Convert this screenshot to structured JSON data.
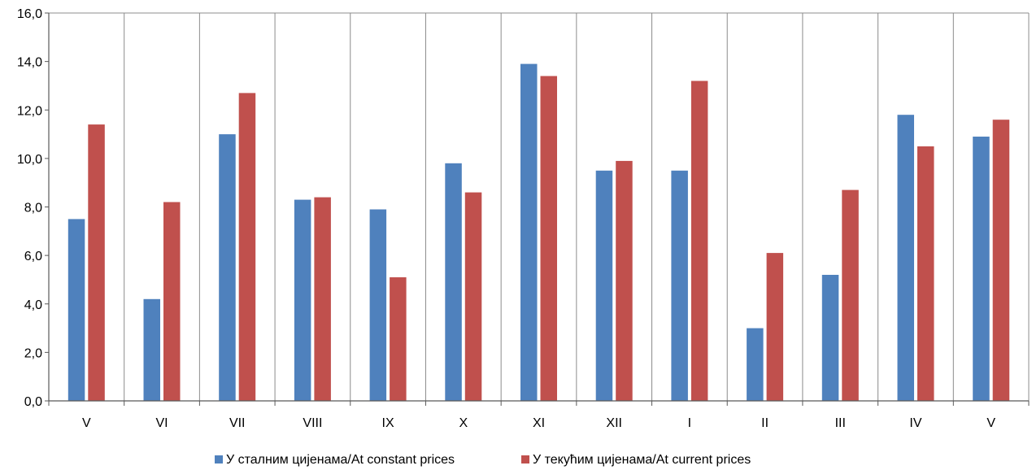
{
  "chart_data": {
    "type": "bar",
    "title": "",
    "xlabel": "",
    "ylabel": "",
    "categories": [
      "V",
      "VI",
      "VII",
      "VIII",
      "IX",
      "X",
      "XI",
      "XII",
      "I",
      "II",
      "III",
      "IV",
      "V"
    ],
    "series": [
      {
        "name": "У сталним цијенама/At constant prices",
        "color": "#4F81BD",
        "values": [
          7.5,
          4.2,
          11.0,
          8.3,
          7.9,
          9.8,
          13.9,
          9.5,
          9.5,
          3.0,
          5.2,
          11.8,
          10.9
        ]
      },
      {
        "name": "У текућим цијенама/At current prices",
        "color": "#C0504D",
        "values": [
          11.4,
          8.2,
          12.7,
          8.4,
          5.1,
          8.6,
          13.4,
          9.9,
          13.2,
          6.1,
          8.7,
          10.5,
          11.6
        ]
      }
    ],
    "ylim": [
      0,
      16
    ],
    "yticks": [
      "0,0",
      "2,0",
      "4,0",
      "6,0",
      "8,0",
      "10,0",
      "12,0",
      "14,0",
      "16,0"
    ],
    "ytick_values": [
      0,
      2,
      4,
      6,
      8,
      10,
      12,
      14,
      16
    ],
    "grid": "vertical",
    "legend_position": "bottom"
  }
}
